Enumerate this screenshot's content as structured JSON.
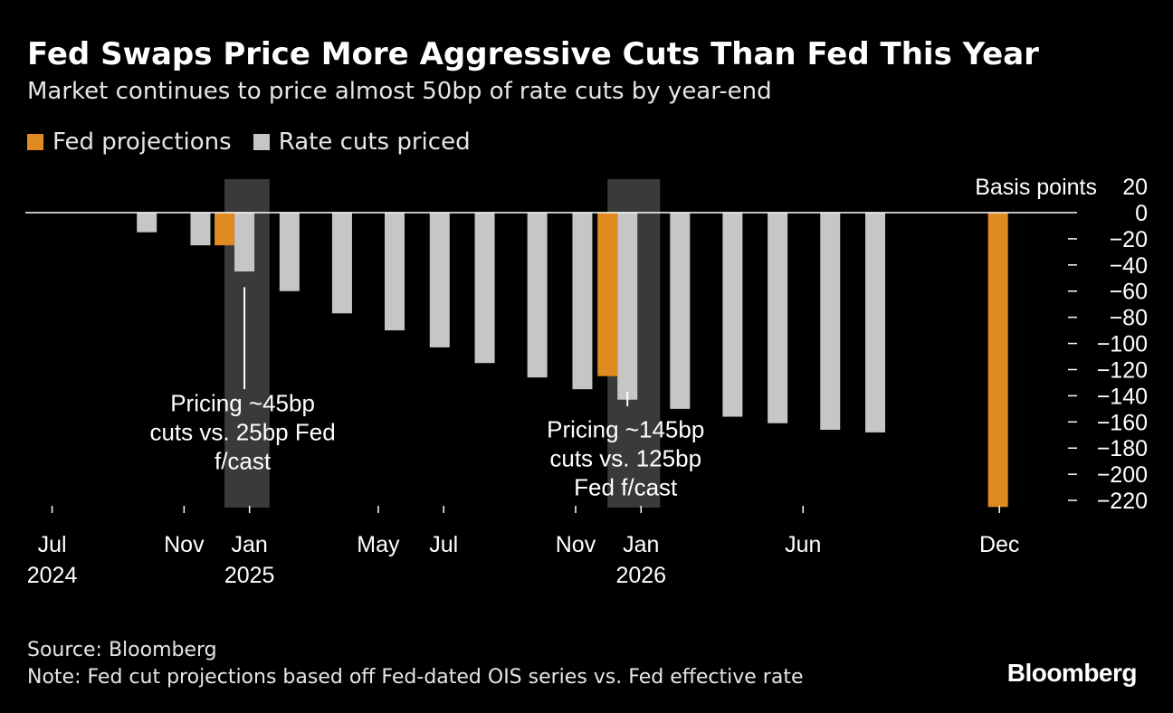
{
  "colors": {
    "fed": "#e08b21",
    "priced": "#c6c6c6",
    "band": "#3a3a3a",
    "zeroline": "#ffffff",
    "text": "#ffffff"
  },
  "footer": {
    "source": "Source: Bloomberg",
    "note": "Note: Fed cut projections based off Fed-dated OIS series vs. Fed effective rate"
  },
  "brand": "Bloomberg",
  "chart_data": {
    "type": "bar",
    "title": "Fed Swaps Price More Aggressive Cuts Than Fed This Year",
    "subtitle": "Market continues to price almost 50bp of rate cuts by year-end",
    "ylabel": "Basis points",
    "ylim": [
      -225,
      20
    ],
    "yticks": [
      20,
      0,
      -20,
      -40,
      -60,
      -80,
      -100,
      -120,
      -140,
      -160,
      -180,
      -200,
      -220
    ],
    "xlim": [
      "2024-06-01",
      "2026-12-31"
    ],
    "xticks": [
      {
        "date": "2024-07-01",
        "label": "Jul",
        "year": "2024"
      },
      {
        "date": "2024-11-01",
        "label": "Nov",
        "year": ""
      },
      {
        "date": "2025-01-01",
        "label": "Jan",
        "year": "2025"
      },
      {
        "date": "2025-05-01",
        "label": "May",
        "year": ""
      },
      {
        "date": "2025-07-01",
        "label": "Jul",
        "year": ""
      },
      {
        "date": "2025-11-01",
        "label": "Nov",
        "year": ""
      },
      {
        "date": "2026-01-01",
        "label": "Jan",
        "year": "2026"
      },
      {
        "date": "2026-06-01",
        "label": "Jun",
        "year": ""
      },
      {
        "date": "2026-12-01",
        "label": "Dec",
        "year": ""
      }
    ],
    "legend": [
      "Fed projections",
      "Rate cuts priced"
    ],
    "legend_position": "top-left",
    "series": [
      {
        "name": "Rate cuts priced",
        "points": [
          {
            "date": "2024-06-12",
            "value": 0
          },
          {
            "date": "2024-07-31",
            "value": 0
          },
          {
            "date": "2024-09-18",
            "value": -15
          },
          {
            "date": "2024-11-07",
            "value": -25
          },
          {
            "date": "2024-12-18",
            "value": -45
          },
          {
            "date": "2025-01-29",
            "value": -60
          },
          {
            "date": "2025-03-19",
            "value": -77
          },
          {
            "date": "2025-05-07",
            "value": -90
          },
          {
            "date": "2025-06-18",
            "value": -103
          },
          {
            "date": "2025-07-30",
            "value": -115
          },
          {
            "date": "2025-09-17",
            "value": -126
          },
          {
            "date": "2025-10-29",
            "value": -135
          },
          {
            "date": "2025-12-10",
            "value": -143
          },
          {
            "date": "2026-01-28",
            "value": -150
          },
          {
            "date": "2026-03-18",
            "value": -156
          },
          {
            "date": "2026-04-29",
            "value": -161
          },
          {
            "date": "2026-06-17",
            "value": -166
          },
          {
            "date": "2026-07-29",
            "value": -168
          }
        ]
      },
      {
        "name": "Fed projections",
        "points": [
          {
            "date": "2024-12-18",
            "value": -25
          },
          {
            "date": "2025-12-10",
            "value": -125
          },
          {
            "date": "2026-12-09",
            "value": -225
          }
        ]
      }
    ],
    "highlight_bands": [
      {
        "start": "2024-12-18",
        "end": "2025-01-29"
      },
      {
        "start": "2025-12-10",
        "end": "2026-01-28"
      }
    ],
    "annotations": [
      {
        "lines": [
          "Pricing ~45bp",
          "cuts vs. 25bp Fed",
          "f/cast"
        ],
        "anchor_date": "2024-12-18",
        "leader_from": -57,
        "leader_to": -135,
        "text_top_value": -152
      },
      {
        "lines": [
          "Pricing ~145bp",
          "cuts vs. 125bp",
          "Fed f/cast"
        ],
        "anchor_date": "2025-12-10",
        "leader_from": -137,
        "leader_to": -148,
        "text_top_value": -172
      }
    ]
  }
}
